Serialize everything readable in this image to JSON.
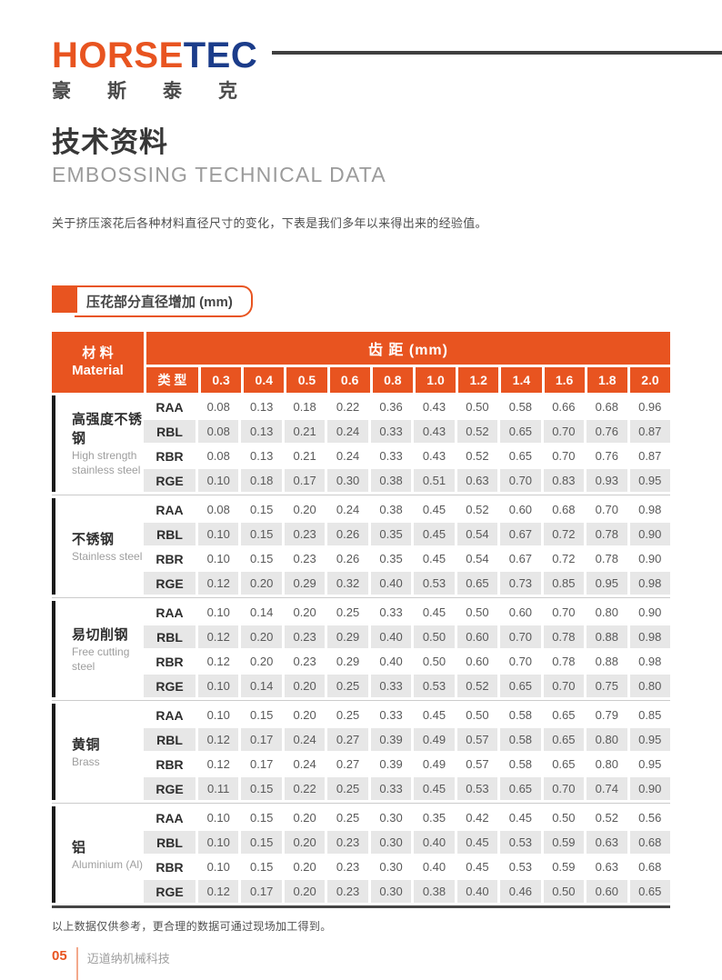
{
  "logo": {
    "en_orange": "HORSE",
    "en_blue": "TEC",
    "cn": "豪斯泰克"
  },
  "title_cn": "技术资料",
  "title_en": "EMBOSSING TECHNICAL DATA",
  "description": "关于挤压滚花后各种材料直径尺寸的变化，下表是我们多年以来得出来的经验值。",
  "section_label": "压花部分直径增加 (mm)",
  "colors": {
    "accent_orange": "#E85420",
    "logo_blue": "#1B3C8A",
    "row_gray": "#E7E7E7"
  },
  "table": {
    "material_header_cn": "材  料",
    "material_header_en": "Material",
    "pitch_header": "齿 距 (mm)",
    "type_header": "类 型",
    "pitch_columns": [
      "0.3",
      "0.4",
      "0.5",
      "0.6",
      "0.8",
      "1.0",
      "1.2",
      "1.4",
      "1.6",
      "1.8",
      "2.0"
    ],
    "groups": [
      {
        "material_cn": "高强度不锈钢",
        "material_en": "High strength stainless steel",
        "rows": [
          {
            "type": "RAA",
            "values": [
              "0.08",
              "0.13",
              "0.18",
              "0.22",
              "0.36",
              "0.43",
              "0.50",
              "0.58",
              "0.66",
              "0.68",
              "0.96"
            ]
          },
          {
            "type": "RBL",
            "values": [
              "0.08",
              "0.13",
              "0.21",
              "0.24",
              "0.33",
              "0.43",
              "0.52",
              "0.65",
              "0.70",
              "0.76",
              "0.87"
            ]
          },
          {
            "type": "RBR",
            "values": [
              "0.08",
              "0.13",
              "0.21",
              "0.24",
              "0.33",
              "0.43",
              "0.52",
              "0.65",
              "0.70",
              "0.76",
              "0.87"
            ]
          },
          {
            "type": "RGE",
            "values": [
              "0.10",
              "0.18",
              "0.17",
              "0.30",
              "0.38",
              "0.51",
              "0.63",
              "0.70",
              "0.83",
              "0.93",
              "0.95"
            ]
          }
        ]
      },
      {
        "material_cn": "不锈钢",
        "material_en": "Stainless steel",
        "rows": [
          {
            "type": "RAA",
            "values": [
              "0.08",
              "0.15",
              "0.20",
              "0.24",
              "0.38",
              "0.45",
              "0.52",
              "0.60",
              "0.68",
              "0.70",
              "0.98"
            ]
          },
          {
            "type": "RBL",
            "values": [
              "0.10",
              "0.15",
              "0.23",
              "0.26",
              "0.35",
              "0.45",
              "0.54",
              "0.67",
              "0.72",
              "0.78",
              "0.90"
            ]
          },
          {
            "type": "RBR",
            "values": [
              "0.10",
              "0.15",
              "0.23",
              "0.26",
              "0.35",
              "0.45",
              "0.54",
              "0.67",
              "0.72",
              "0.78",
              "0.90"
            ]
          },
          {
            "type": "RGE",
            "values": [
              "0.12",
              "0.20",
              "0.29",
              "0.32",
              "0.40",
              "0.53",
              "0.65",
              "0.73",
              "0.85",
              "0.95",
              "0.98"
            ]
          }
        ]
      },
      {
        "material_cn": "易切削钢",
        "material_en": "Free cutting steel",
        "rows": [
          {
            "type": "RAA",
            "values": [
              "0.10",
              "0.14",
              "0.20",
              "0.25",
              "0.33",
              "0.45",
              "0.50",
              "0.60",
              "0.70",
              "0.80",
              "0.90"
            ]
          },
          {
            "type": "RBL",
            "values": [
              "0.12",
              "0.20",
              "0.23",
              "0.29",
              "0.40",
              "0.50",
              "0.60",
              "0.70",
              "0.78",
              "0.88",
              "0.98"
            ]
          },
          {
            "type": "RBR",
            "values": [
              "0.12",
              "0.20",
              "0.23",
              "0.29",
              "0.40",
              "0.50",
              "0.60",
              "0.70",
              "0.78",
              "0.88",
              "0.98"
            ]
          },
          {
            "type": "RGE",
            "values": [
              "0.10",
              "0.14",
              "0.20",
              "0.25",
              "0.33",
              "0.53",
              "0.52",
              "0.65",
              "0.70",
              "0.75",
              "0.80"
            ]
          }
        ]
      },
      {
        "material_cn": "黄铜",
        "material_en": "Brass",
        "rows": [
          {
            "type": "RAA",
            "values": [
              "0.10",
              "0.15",
              "0.20",
              "0.25",
              "0.33",
              "0.45",
              "0.50",
              "0.58",
              "0.65",
              "0.79",
              "0.85"
            ]
          },
          {
            "type": "RBL",
            "values": [
              "0.12",
              "0.17",
              "0.24",
              "0.27",
              "0.39",
              "0.49",
              "0.57",
              "0.58",
              "0.65",
              "0.80",
              "0.95"
            ]
          },
          {
            "type": "RBR",
            "values": [
              "0.12",
              "0.17",
              "0.24",
              "0.27",
              "0.39",
              "0.49",
              "0.57",
              "0.58",
              "0.65",
              "0.80",
              "0.95"
            ]
          },
          {
            "type": "RGE",
            "values": [
              "0.11",
              "0.15",
              "0.22",
              "0.25",
              "0.33",
              "0.45",
              "0.53",
              "0.65",
              "0.70",
              "0.74",
              "0.90"
            ]
          }
        ]
      },
      {
        "material_cn": "铝",
        "material_en": "Aluminium (Al)",
        "rows": [
          {
            "type": "RAA",
            "values": [
              "0.10",
              "0.15",
              "0.20",
              "0.25",
              "0.30",
              "0.35",
              "0.42",
              "0.45",
              "0.50",
              "0.52",
              "0.56"
            ]
          },
          {
            "type": "RBL",
            "values": [
              "0.10",
              "0.15",
              "0.20",
              "0.23",
              "0.30",
              "0.40",
              "0.45",
              "0.53",
              "0.59",
              "0.63",
              "0.68"
            ]
          },
          {
            "type": "RBR",
            "values": [
              "0.10",
              "0.15",
              "0.20",
              "0.23",
              "0.30",
              "0.40",
              "0.45",
              "0.53",
              "0.59",
              "0.63",
              "0.68"
            ]
          },
          {
            "type": "RGE",
            "values": [
              "0.12",
              "0.17",
              "0.20",
              "0.23",
              "0.30",
              "0.38",
              "0.40",
              "0.46",
              "0.50",
              "0.60",
              "0.65"
            ]
          }
        ]
      }
    ]
  },
  "footnote": "以上数据仅供参考，更合理的数据可通过现场加工得到。",
  "footer": {
    "page_number": "05",
    "company": "迈道纳机械科技"
  }
}
